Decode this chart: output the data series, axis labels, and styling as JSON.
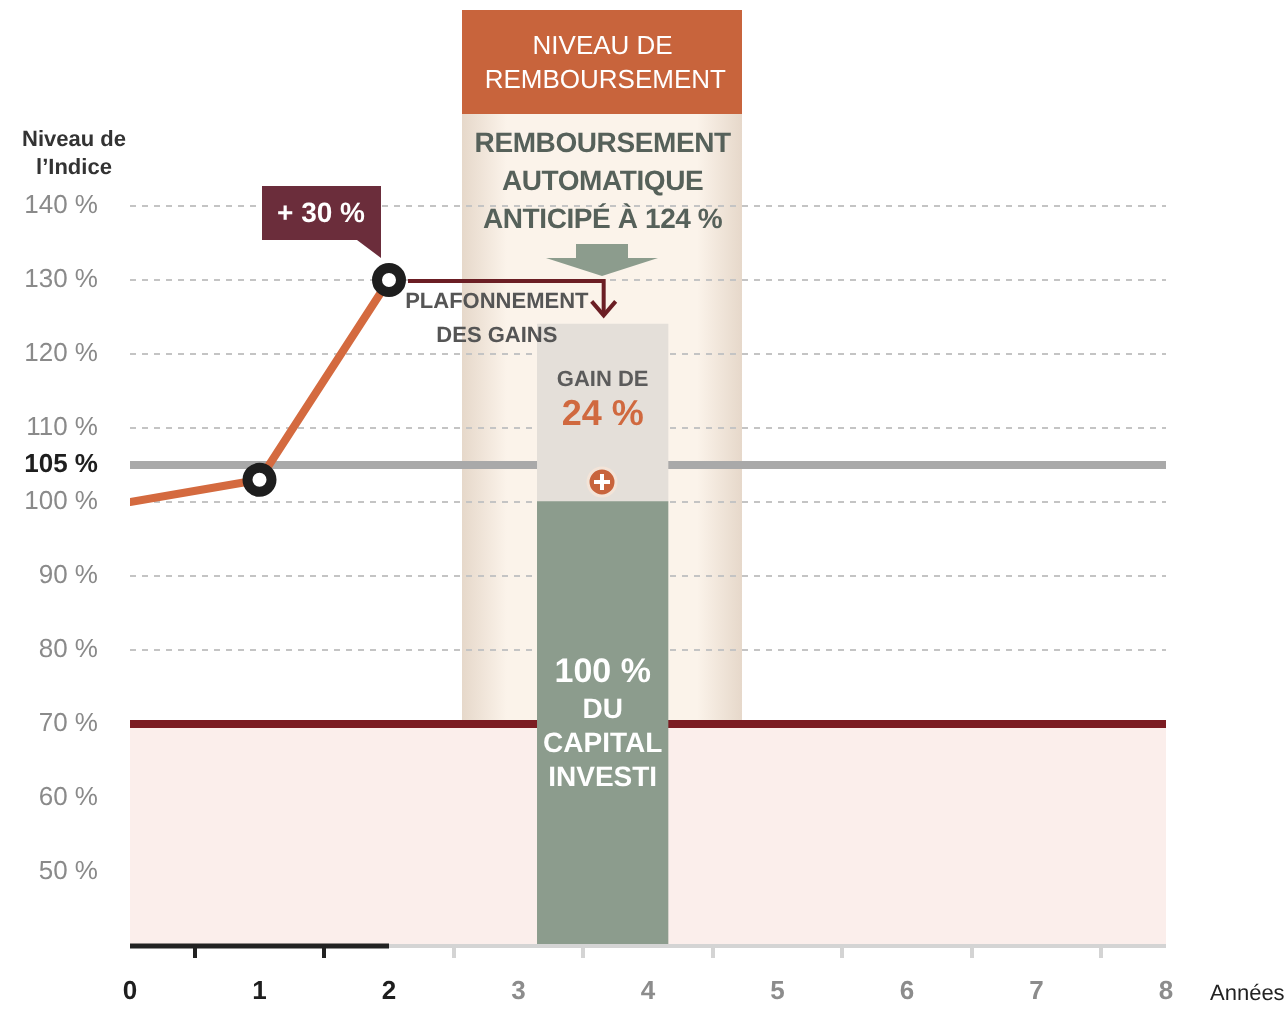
{
  "chart_data": {
    "type": "bar",
    "ylabel": "Niveau de l’Indice",
    "xlabel": "Années",
    "xlim": [
      0,
      8
    ],
    "xticks": [
      0,
      1,
      2,
      3,
      4,
      5,
      6,
      7,
      8
    ],
    "ylim": [
      40,
      140
    ],
    "yticks": [
      {
        "value": 50,
        "label": "50 %"
      },
      {
        "value": 60,
        "label": "60 %"
      },
      {
        "value": 70,
        "label": "70 %"
      },
      {
        "value": 80,
        "label": "80 %"
      },
      {
        "value": 90,
        "label": "90 %"
      },
      {
        "value": 100,
        "label": "100 %"
      },
      {
        "value": 110,
        "label": "110 %"
      },
      {
        "value": 120,
        "label": "120 %"
      },
      {
        "value": 130,
        "label": "130 %"
      },
      {
        "value": 140,
        "label": "140 %"
      }
    ],
    "grid": "y",
    "marker": "circle",
    "stacked": true,
    "series": [
      {
        "type": "line",
        "color": "#d46a3f",
        "x": [
          0,
          1,
          2
        ],
        "values": [
          100,
          103,
          130
        ],
        "marker": "none"
      },
      {
        "type": "scatter",
        "color": "#1e1e1e",
        "x": [
          1,
          2
        ],
        "values": [
          103,
          130
        ]
      },
      {
        "color": "#8c9c8d",
        "x": [
          3.65
        ],
        "values": [
          100
        ],
        "value_labels": [
          "100 % DU CAPITAL INVESTI"
        ]
      },
      {
        "color": "#e4dfd9",
        "x": [
          3.65
        ],
        "base": [
          100
        ],
        "values": [
          24
        ],
        "value_labels": [
          "GAIN DE 24 %"
        ]
      }
    ],
    "ref_lines": [
      {
        "axis": "y",
        "value": 105,
        "label": "105 %",
        "color": "#a9a9a9"
      },
      {
        "axis": "y",
        "value": 70,
        "color": "#7b1c22"
      }
    ],
    "bands": [
      {
        "axis": "y",
        "from": 40,
        "to": 70,
        "color": "#fbeeeb"
      }
    ],
    "annotations": [
      "NIVEAU DE REMBOURSEMENT",
      "REMBOURSEMENT AUTOMATIQUE ANTICIPÉ À 124 %",
      {
        "text": "+ 30 %",
        "x": 2,
        "y": 130
      },
      "PLAFONNEMENT DES GAINS"
    ]
  }
}
